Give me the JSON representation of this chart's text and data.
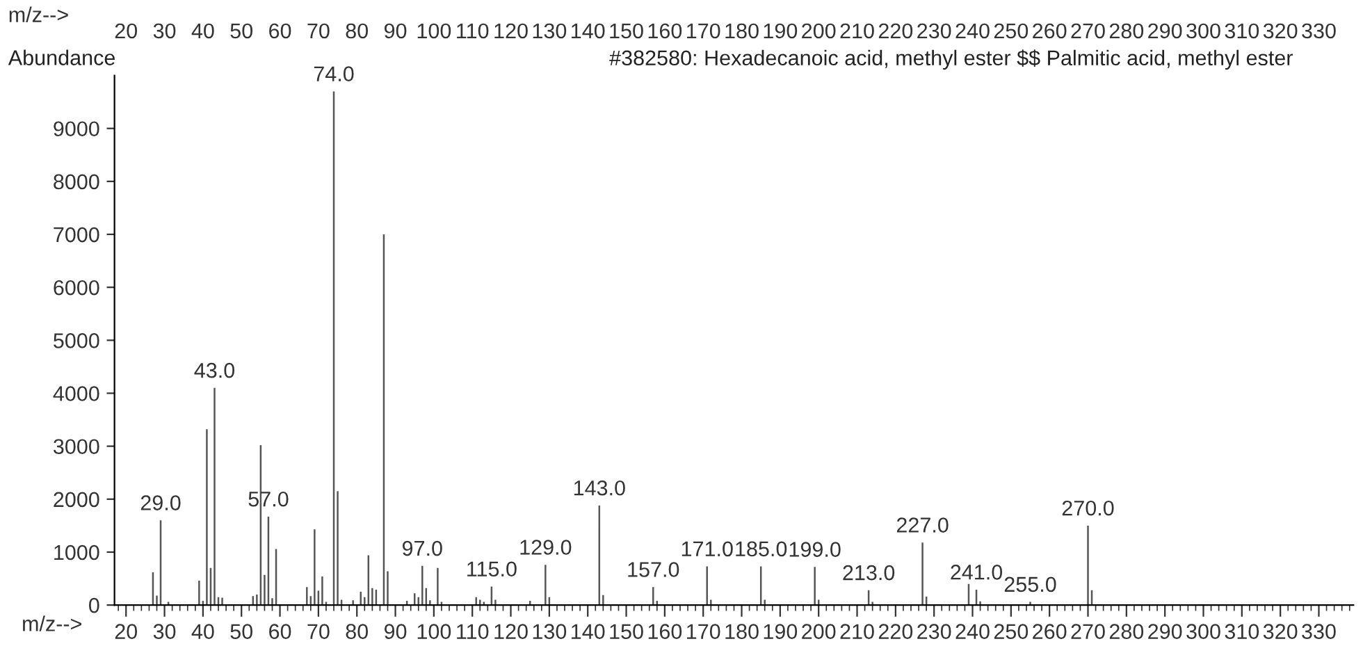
{
  "chart_data": {
    "type": "bar",
    "title": "#382580: Hexadecanoic acid, methyl ester $$ Palmitic acid, methyl ester",
    "ylabel": "Abundance",
    "xlabel": "m/z-->",
    "x2label": "m/z-->",
    "x": [
      27,
      28,
      29,
      31,
      39,
      40,
      41,
      42,
      43,
      44,
      45,
      53,
      54,
      55,
      56,
      57,
      58,
      59,
      67,
      68,
      69,
      70,
      71,
      72,
      74,
      75,
      76,
      79,
      81,
      82,
      83,
      84,
      85,
      87,
      88,
      93,
      95,
      96,
      97,
      98,
      99,
      101,
      102,
      111,
      112,
      113,
      115,
      116,
      125,
      129,
      130,
      143,
      144,
      157,
      158,
      171,
      172,
      185,
      186,
      199,
      200,
      213,
      214,
      227,
      228,
      239,
      241,
      242,
      255,
      270,
      271
    ],
    "values": [
      620,
      180,
      1600,
      60,
      460,
      80,
      3320,
      700,
      4100,
      150,
      140,
      170,
      200,
      3020,
      570,
      1670,
      130,
      1060,
      340,
      170,
      1430,
      270,
      540,
      60,
      9700,
      2150,
      100,
      90,
      250,
      150,
      940,
      320,
      290,
      7000,
      640,
      80,
      220,
      150,
      740,
      320,
      90,
      700,
      60,
      150,
      100,
      60,
      350,
      100,
      80,
      760,
      150,
      1880,
      190,
      340,
      80,
      730,
      100,
      730,
      100,
      720,
      100,
      280,
      60,
      1180,
      160,
      400,
      290,
      70,
      60,
      1500,
      280
    ],
    "color": "#555555",
    "xlim": [
      17,
      339
    ],
    "xticks": [
      20,
      30,
      40,
      50,
      60,
      70,
      80,
      90,
      100,
      110,
      120,
      130,
      140,
      150,
      160,
      170,
      180,
      190,
      200,
      210,
      220,
      230,
      240,
      250,
      260,
      270,
      280,
      290,
      300,
      310,
      320,
      330
    ],
    "x2lim": [
      17,
      339
    ],
    "x2ticks": [
      20,
      30,
      40,
      50,
      60,
      70,
      80,
      90,
      100,
      110,
      120,
      130,
      140,
      150,
      160,
      170,
      180,
      190,
      200,
      210,
      220,
      230,
      240,
      250,
      260,
      270,
      280,
      290,
      300,
      310,
      320,
      330
    ],
    "ylim": [
      0,
      10000
    ],
    "yticks": [
      0,
      1000,
      2000,
      3000,
      4000,
      5000,
      6000,
      7000,
      8000,
      9000
    ],
    "grid": false,
    "legend": false,
    "annotations": [
      {
        "text": "29.0",
        "x": 29,
        "y": 1600
      },
      {
        "text": "43.0",
        "x": 43,
        "y": 4100
      },
      {
        "text": "57.0",
        "x": 57,
        "y": 1670
      },
      {
        "text": "74.0",
        "x": 74,
        "y": 9700
      },
      {
        "text": "97.0",
        "x": 97,
        "y": 740
      },
      {
        "text": "115.0",
        "x": 115,
        "y": 350
      },
      {
        "text": "129.0",
        "x": 129,
        "y": 760
      },
      {
        "text": "143.0",
        "x": 143,
        "y": 1880
      },
      {
        "text": "157.0",
        "x": 157,
        "y": 340
      },
      {
        "text": "171.0",
        "x": 171,
        "y": 730
      },
      {
        "text": "185.0",
        "x": 185,
        "y": 730
      },
      {
        "text": "199.0",
        "x": 199,
        "y": 720
      },
      {
        "text": "213.0",
        "x": 213,
        "y": 280
      },
      {
        "text": "227.0",
        "x": 227,
        "y": 1180
      },
      {
        "text": "241.0",
        "x": 241,
        "y": 290
      },
      {
        "text": "255.0",
        "x": 255,
        "y": 60
      },
      {
        "text": "270.0",
        "x": 270,
        "y": 1500
      }
    ]
  }
}
